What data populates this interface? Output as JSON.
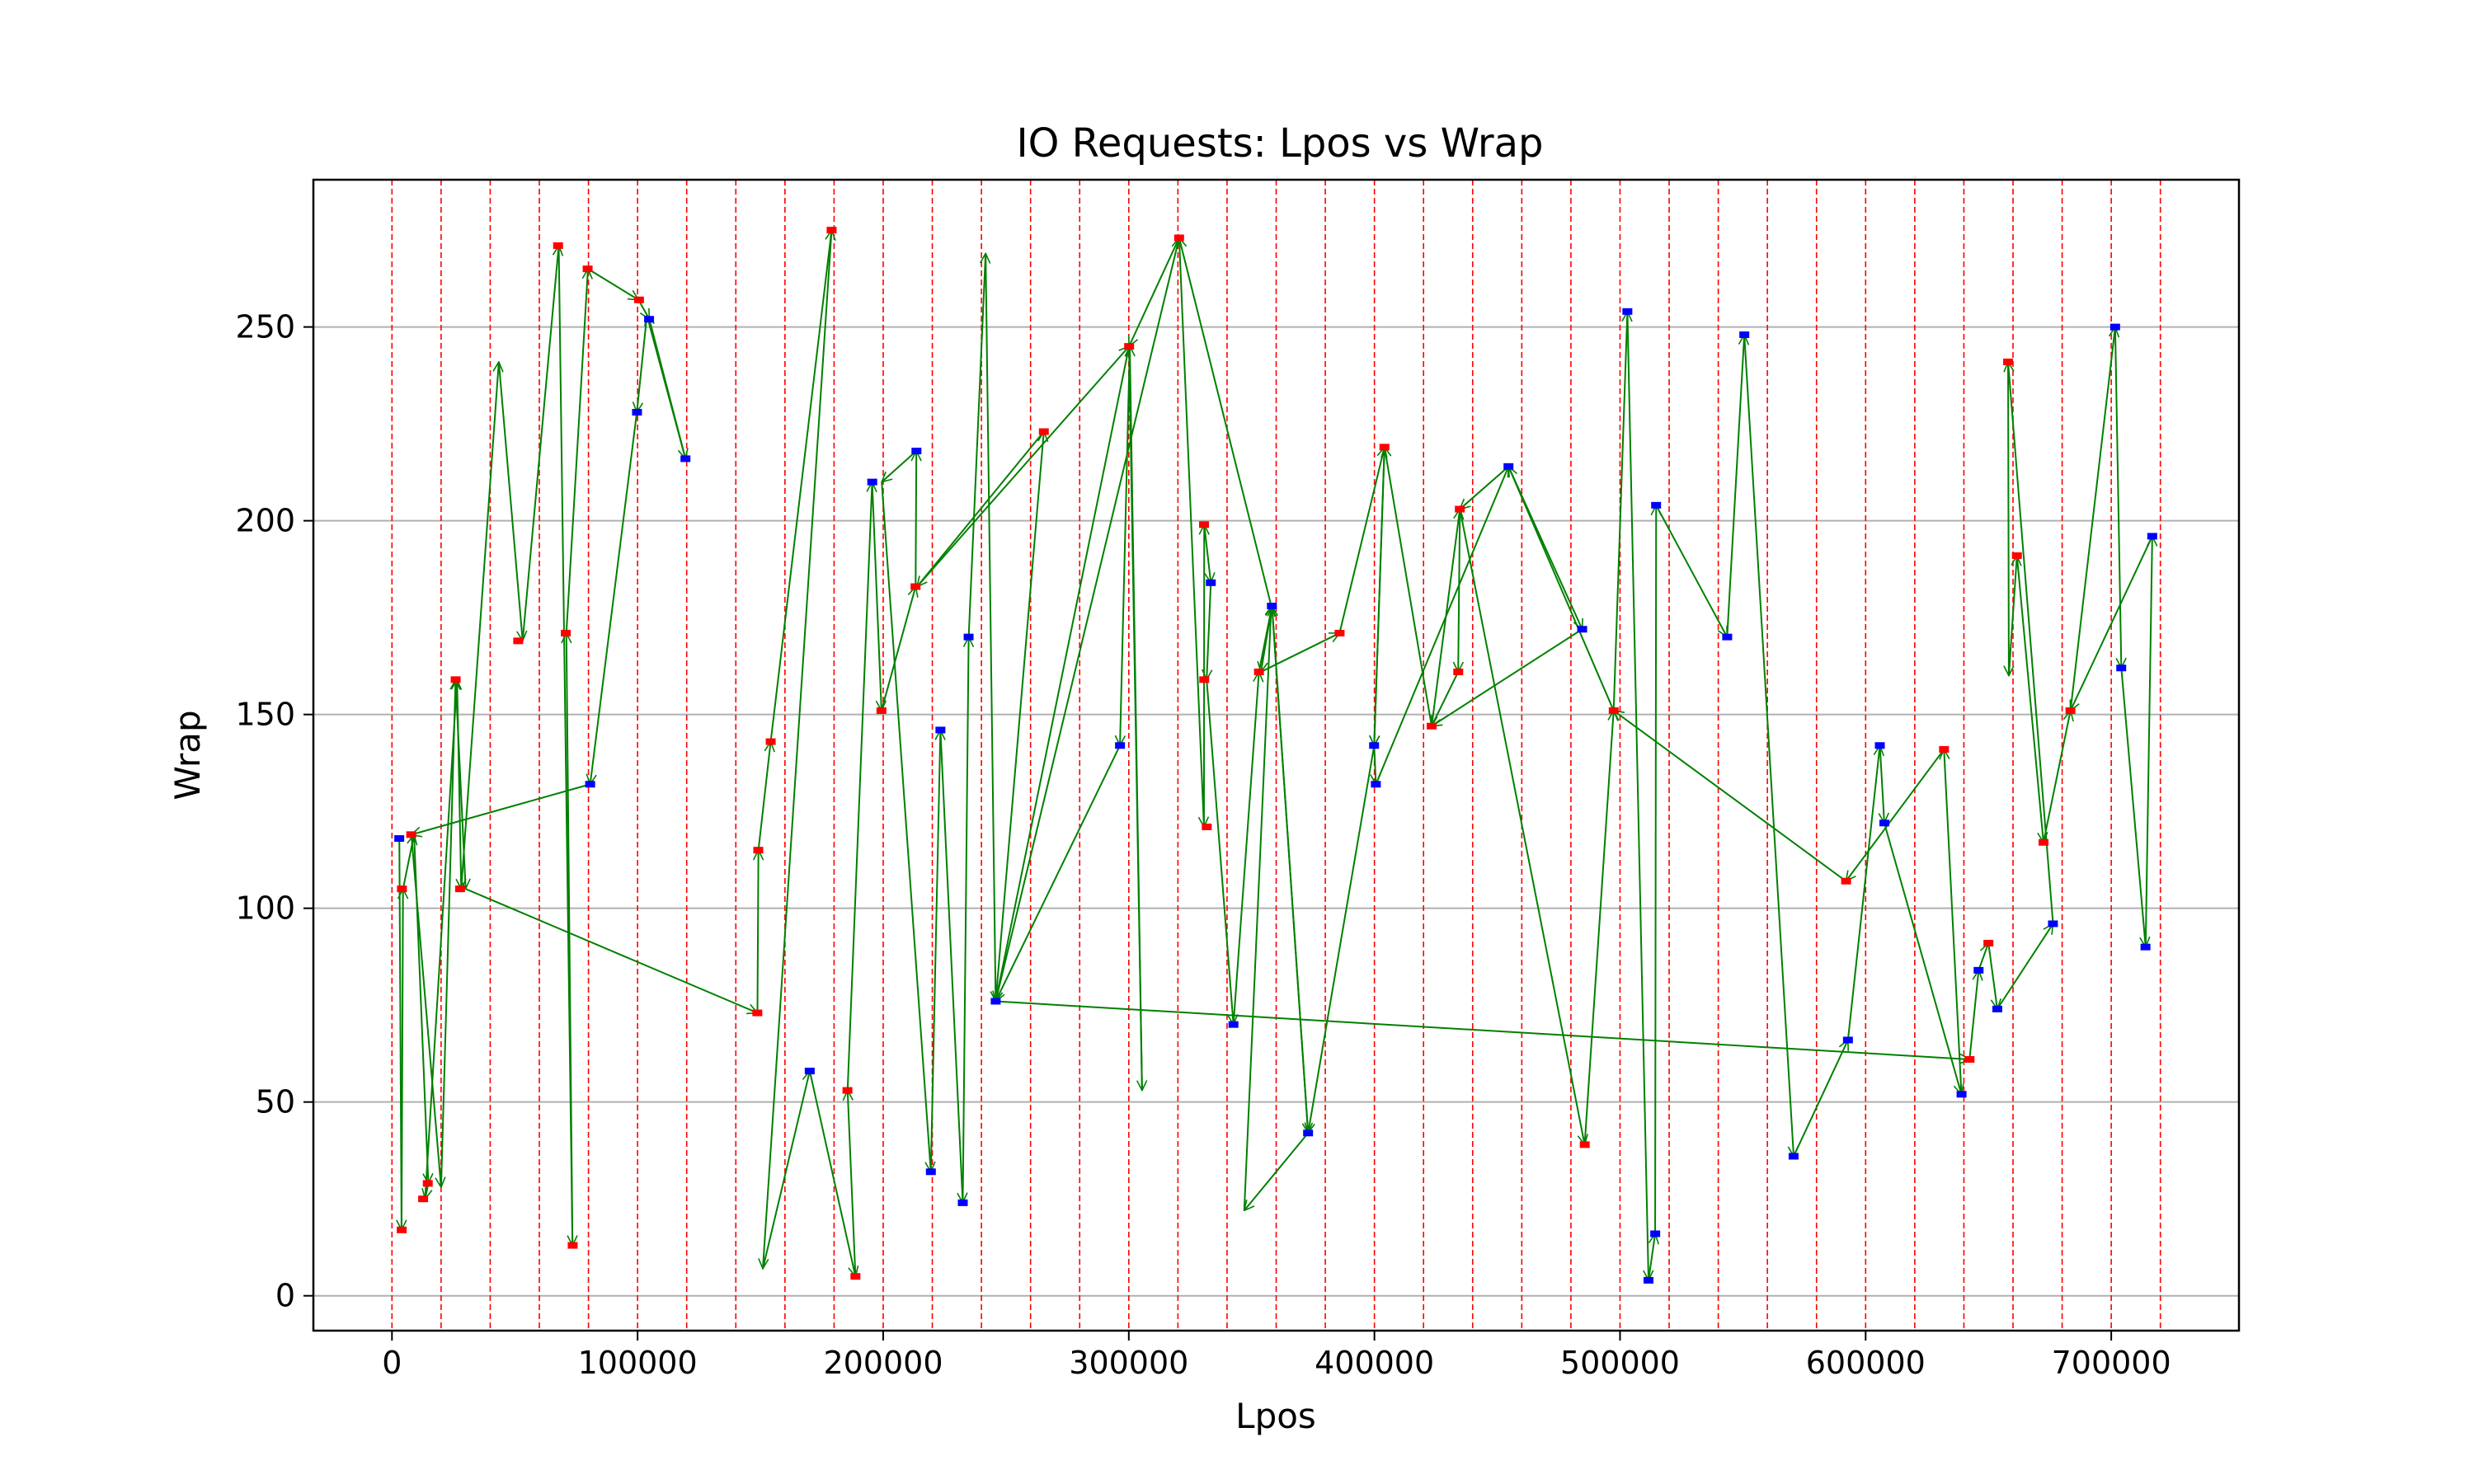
{
  "chart_data": {
    "type": "scatter",
    "title": "IO Requests: Lpos vs Wrap",
    "xlabel": "Lpos",
    "ylabel": "Wrap",
    "xlim": [
      -32000,
      752000
    ],
    "ylim": [
      -9,
      288
    ],
    "xticks": [
      0,
      100000,
      200000,
      300000,
      400000,
      500000,
      600000,
      700000
    ],
    "xtick_labels": [
      "0",
      "100000",
      "200000",
      "300000",
      "400000",
      "500000",
      "600000",
      "700000"
    ],
    "yticks": [
      0,
      50,
      100,
      150,
      200,
      250
    ],
    "ytick_labels": [
      "0",
      "50",
      "100",
      "150",
      "200",
      "250"
    ],
    "grid": "horizontal",
    "vertical_boundaries_every": 20000,
    "vertical_boundaries_count": 37,
    "colors": {
      "red_points": "#ff0000",
      "blue_points": "#0000ff",
      "path_arrows": "#008000",
      "boundary_lines": "#ff0000",
      "grid": "#b0b0b0"
    },
    "points": [
      {
        "x": 2967,
        "y": 118,
        "color": "blue"
      },
      {
        "x": 4057,
        "y": 105,
        "color": "red"
      },
      {
        "x": 3967,
        "y": 17,
        "color": "red"
      },
      {
        "x": 7827,
        "y": 119,
        "color": "red"
      },
      {
        "x": 12687,
        "y": 25,
        "color": "red"
      },
      {
        "x": 14577,
        "y": 29,
        "color": "red"
      },
      {
        "x": 25937,
        "y": 159,
        "color": "red"
      },
      {
        "x": 27727,
        "y": 105,
        "color": "red"
      },
      {
        "x": 51397,
        "y": 169,
        "color": "red"
      },
      {
        "x": 67627,
        "y": 271,
        "color": "red"
      },
      {
        "x": 70767,
        "y": 171,
        "color": "red"
      },
      {
        "x": 73577,
        "y": 13,
        "color": "red"
      },
      {
        "x": 79667,
        "y": 265,
        "color": "red"
      },
      {
        "x": 80687,
        "y": 132,
        "color": "blue"
      },
      {
        "x": 99767,
        "y": 228,
        "color": "blue"
      },
      {
        "x": 100587,
        "y": 257,
        "color": "red"
      },
      {
        "x": 104687,
        "y": 252,
        "color": "blue"
      },
      {
        "x": 119497,
        "y": 216,
        "color": "blue"
      },
      {
        "x": 148757,
        "y": 73,
        "color": "red"
      },
      {
        "x": 149137,
        "y": 115,
        "color": "red"
      },
      {
        "x": 154197,
        "y": 143,
        "color": "red"
      },
      {
        "x": 170087,
        "y": 58,
        "color": "blue"
      },
      {
        "x": 178997,
        "y": 275,
        "color": "red"
      },
      {
        "x": 185437,
        "y": 53,
        "color": "red"
      },
      {
        "x": 188697,
        "y": 5,
        "color": "red"
      },
      {
        "x": 195537,
        "y": 210,
        "color": "blue"
      },
      {
        "x": 199277,
        "y": 151,
        "color": "red"
      },
      {
        "x": 213167,
        "y": 183,
        "color": "red"
      },
      {
        "x": 213547,
        "y": 218,
        "color": "blue"
      },
      {
        "x": 219407,
        "y": 32,
        "color": "blue"
      },
      {
        "x": 223307,
        "y": 146,
        "color": "blue"
      },
      {
        "x": 232407,
        "y": 24,
        "color": "blue"
      },
      {
        "x": 234777,
        "y": 170,
        "color": "blue"
      },
      {
        "x": 245807,
        "y": 76,
        "color": "blue"
      },
      {
        "x": 265407,
        "y": 223,
        "color": "red"
      },
      {
        "x": 296417,
        "y": 142,
        "color": "blue"
      },
      {
        "x": 300127,
        "y": 245,
        "color": "red"
      },
      {
        "x": 320487,
        "y": 273,
        "color": "red"
      },
      {
        "x": 330627,
        "y": 199,
        "color": "red"
      },
      {
        "x": 330717,
        "y": 159,
        "color": "red"
      },
      {
        "x": 331737,
        "y": 121,
        "color": "red"
      },
      {
        "x": 333397,
        "y": 184,
        "color": "blue"
      },
      {
        "x": 342607,
        "y": 70,
        "color": "blue"
      },
      {
        "x": 352997,
        "y": 161,
        "color": "red"
      },
      {
        "x": 358257,
        "y": 178,
        "color": "blue"
      },
      {
        "x": 372987,
        "y": 42,
        "color": "blue"
      },
      {
        "x": 385827,
        "y": 171,
        "color": "red"
      },
      {
        "x": 399867,
        "y": 142,
        "color": "blue"
      },
      {
        "x": 400587,
        "y": 132,
        "color": "blue"
      },
      {
        "x": 404067,
        "y": 219,
        "color": "red"
      },
      {
        "x": 423307,
        "y": 147,
        "color": "red"
      },
      {
        "x": 434127,
        "y": 161,
        "color": "red"
      },
      {
        "x": 434767,
        "y": 203,
        "color": "red"
      },
      {
        "x": 454587,
        "y": 214,
        "color": "blue"
      },
      {
        "x": 484587,
        "y": 172,
        "color": "blue"
      },
      {
        "x": 485627,
        "y": 39,
        "color": "red"
      },
      {
        "x": 497427,
        "y": 151,
        "color": "red"
      },
      {
        "x": 502987,
        "y": 254,
        "color": "blue"
      },
      {
        "x": 511587,
        "y": 4,
        "color": "blue"
      },
      {
        "x": 514327,
        "y": 16,
        "color": "blue"
      },
      {
        "x": 514687,
        "y": 204,
        "color": "blue"
      },
      {
        "x": 543637,
        "y": 170,
        "color": "blue"
      },
      {
        "x": 550597,
        "y": 248,
        "color": "blue"
      },
      {
        "x": 570657,
        "y": 36,
        "color": "blue"
      },
      {
        "x": 592047,
        "y": 107,
        "color": "red"
      },
      {
        "x": 592797,
        "y": 66,
        "color": "blue"
      },
      {
        "x": 605777,
        "y": 142,
        "color": "blue"
      },
      {
        "x": 607627,
        "y": 122,
        "color": "blue"
      },
      {
        "x": 631907,
        "y": 141,
        "color": "red"
      },
      {
        "x": 639047,
        "y": 52,
        "color": "blue"
      },
      {
        "x": 642307,
        "y": 61,
        "color": "red"
      },
      {
        "x": 645987,
        "y": 84,
        "color": "blue"
      },
      {
        "x": 649987,
        "y": 91,
        "color": "red"
      },
      {
        "x": 653607,
        "y": 74,
        "color": "blue"
      },
      {
        "x": 657987,
        "y": 241,
        "color": "red"
      },
      {
        "x": 661587,
        "y": 191,
        "color": "red"
      },
      {
        "x": 672427,
        "y": 117,
        "color": "red"
      },
      {
        "x": 676267,
        "y": 96,
        "color": "blue"
      },
      {
        "x": 683387,
        "y": 151,
        "color": "red"
      },
      {
        "x": 701577,
        "y": 250,
        "color": "blue"
      },
      {
        "x": 704067,
        "y": 162,
        "color": "blue"
      },
      {
        "x": 713937,
        "y": 90,
        "color": "blue"
      },
      {
        "x": 716687,
        "y": 196,
        "color": "blue"
      }
    ],
    "path": [
      [
        3000,
        118
      ],
      [
        3900,
        17
      ],
      [
        4500,
        105
      ],
      [
        9000,
        119
      ],
      [
        14800,
        29
      ],
      [
        13500,
        25
      ],
      [
        26500,
        159
      ],
      [
        28200,
        105
      ],
      [
        43500,
        241
      ],
      [
        53200,
        169
      ],
      [
        67900,
        271
      ],
      [
        73500,
        13
      ],
      [
        71000,
        171
      ],
      [
        79800,
        265
      ],
      [
        100400,
        257
      ],
      [
        104800,
        252
      ],
      [
        119500,
        216
      ],
      [
        103800,
        253
      ],
      [
        99700,
        228
      ],
      [
        80700,
        132
      ],
      [
        7900,
        119
      ],
      [
        20000,
        28
      ],
      [
        25900,
        159
      ],
      [
        30000,
        105
      ],
      [
        148800,
        73
      ],
      [
        149200,
        115
      ],
      [
        154200,
        143
      ],
      [
        179000,
        275
      ],
      [
        151000,
        7
      ],
      [
        170100,
        58
      ],
      [
        188700,
        5
      ],
      [
        185500,
        53
      ],
      [
        195500,
        210
      ],
      [
        199300,
        151
      ],
      [
        213200,
        183
      ],
      [
        213500,
        218
      ],
      [
        199400,
        210
      ],
      [
        219400,
        32
      ],
      [
        223300,
        146
      ],
      [
        232400,
        24
      ],
      [
        234800,
        170
      ],
      [
        241700,
        269
      ],
      [
        245800,
        76
      ],
      [
        265400,
        223
      ],
      [
        213800,
        183
      ],
      [
        300100,
        245
      ],
      [
        305400,
        53
      ],
      [
        300400,
        245
      ],
      [
        296400,
        142
      ],
      [
        245800,
        76
      ],
      [
        320500,
        273
      ],
      [
        330600,
        121
      ],
      [
        330700,
        199
      ],
      [
        333400,
        184
      ],
      [
        331700,
        159
      ],
      [
        342600,
        70
      ],
      [
        353000,
        161
      ],
      [
        358300,
        178
      ],
      [
        373000,
        42
      ],
      [
        358300,
        178
      ],
      [
        353800,
        161
      ],
      [
        385800,
        171
      ],
      [
        404100,
        219
      ],
      [
        399900,
        142
      ],
      [
        400600,
        132
      ],
      [
        454600,
        214
      ],
      [
        434800,
        203
      ],
      [
        434100,
        161
      ],
      [
        423300,
        147
      ],
      [
        434800,
        203
      ],
      [
        485600,
        39
      ],
      [
        497400,
        151
      ],
      [
        503000,
        254
      ],
      [
        511600,
        4
      ],
      [
        514300,
        16
      ],
      [
        514700,
        204
      ],
      [
        543600,
        170
      ],
      [
        550600,
        248
      ],
      [
        570700,
        36
      ],
      [
        592800,
        66
      ],
      [
        605800,
        142
      ],
      [
        607600,
        122
      ],
      [
        639000,
        52
      ],
      [
        631900,
        141
      ],
      [
        592000,
        107
      ],
      [
        497400,
        151
      ],
      [
        454600,
        214
      ],
      [
        484600,
        172
      ],
      [
        423300,
        147
      ],
      [
        404100,
        219
      ],
      [
        399900,
        142
      ],
      [
        373000,
        42
      ],
      [
        347000,
        22
      ],
      [
        358000,
        178
      ],
      [
        320500,
        273
      ],
      [
        300100,
        245
      ],
      [
        245800,
        76
      ],
      [
        642300,
        61
      ],
      [
        646000,
        84
      ],
      [
        650000,
        91
      ],
      [
        653600,
        74
      ],
      [
        676300,
        96
      ],
      [
        658000,
        241
      ],
      [
        658300,
        160
      ],
      [
        661600,
        191
      ],
      [
        672400,
        117
      ],
      [
        683400,
        151
      ],
      [
        701600,
        250
      ],
      [
        704100,
        162
      ],
      [
        714000,
        90
      ],
      [
        716700,
        196
      ],
      [
        683400,
        151
      ]
    ]
  }
}
